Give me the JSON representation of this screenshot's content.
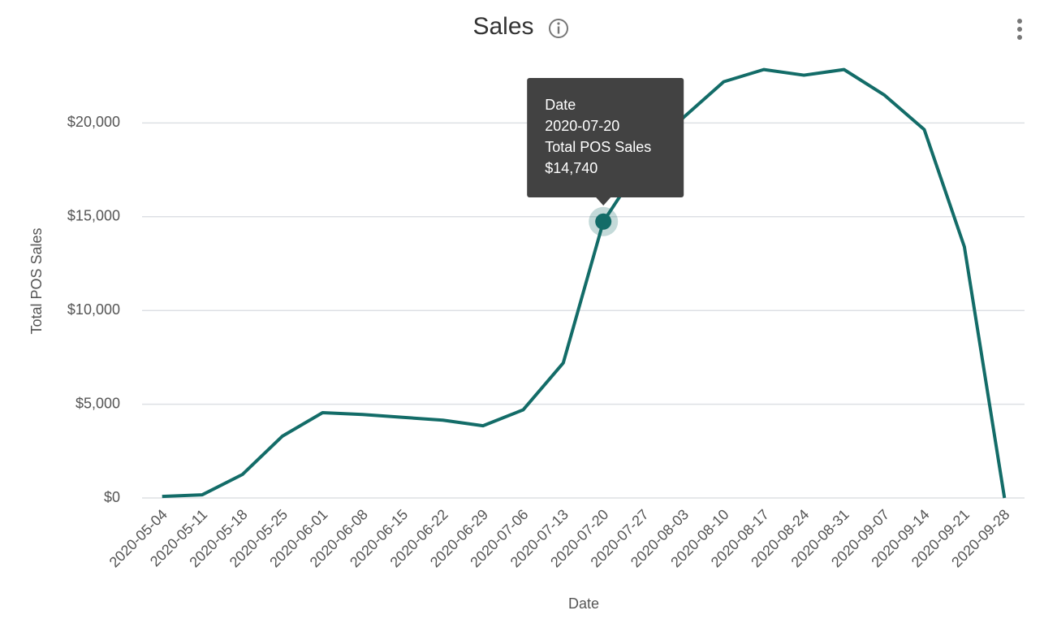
{
  "chart_data": {
    "type": "line",
    "title": "Sales",
    "x_label": "Date",
    "y_label": "Total POS Sales",
    "categories": [
      "2020-05-04",
      "2020-05-11",
      "2020-05-18",
      "2020-05-25",
      "2020-06-01",
      "2020-06-08",
      "2020-06-15",
      "2020-06-22",
      "2020-06-29",
      "2020-07-06",
      "2020-07-13",
      "2020-07-20",
      "2020-07-27",
      "2020-08-03",
      "2020-08-10",
      "2020-08-17",
      "2020-08-24",
      "2020-08-31",
      "2020-09-07",
      "2020-09-14",
      "2020-09-21",
      "2020-09-28"
    ],
    "series": [
      {
        "name": "Total POS Sales",
        "color": "#136c68",
        "values": [
          80,
          170,
          1250,
          3300,
          4550,
          4450,
          4300,
          4150,
          3850,
          4700,
          7200,
          14740,
          18000,
          20300,
          22200,
          22850,
          22550,
          22850,
          21500,
          19650,
          13400,
          0
        ]
      }
    ],
    "ylim": [
      0,
      25000
    ],
    "yticks": [
      {
        "value": 0,
        "label": "$0"
      },
      {
        "value": 5000,
        "label": "$5,000"
      },
      {
        "value": 10000,
        "label": "$10,000"
      },
      {
        "value": 15000,
        "label": "$15,000"
      },
      {
        "value": 20000,
        "label": "$20,000"
      }
    ],
    "grid": true,
    "tooltip": {
      "category": "2020-07-20",
      "value_label": "$14,740"
    }
  }
}
